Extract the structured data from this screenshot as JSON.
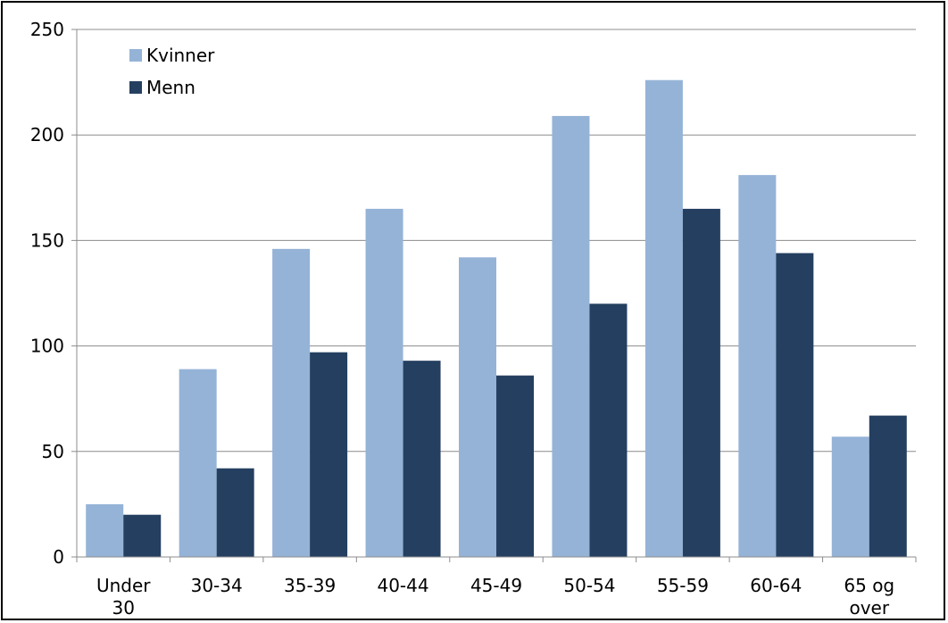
{
  "chart_data": {
    "type": "bar",
    "categories": [
      [
        "Under",
        "30"
      ],
      [
        "30-34"
      ],
      [
        "35-39"
      ],
      [
        "40-44"
      ],
      [
        "45-49"
      ],
      [
        "50-54"
      ],
      [
        "55-59"
      ],
      [
        "60-64"
      ],
      [
        "65 og",
        "over"
      ]
    ],
    "series": [
      {
        "name": "Kvinner",
        "color": "#95b3d7",
        "values": [
          25,
          89,
          146,
          165,
          142,
          209,
          226,
          181,
          57
        ]
      },
      {
        "name": "Menn",
        "color": "#243f60",
        "values": [
          20,
          42,
          97,
          93,
          86,
          120,
          165,
          144,
          67
        ]
      }
    ],
    "ylim": [
      0,
      250
    ],
    "yticks": [
      0,
      50,
      100,
      150,
      200,
      250
    ],
    "grid": true,
    "legend": "top-left"
  }
}
